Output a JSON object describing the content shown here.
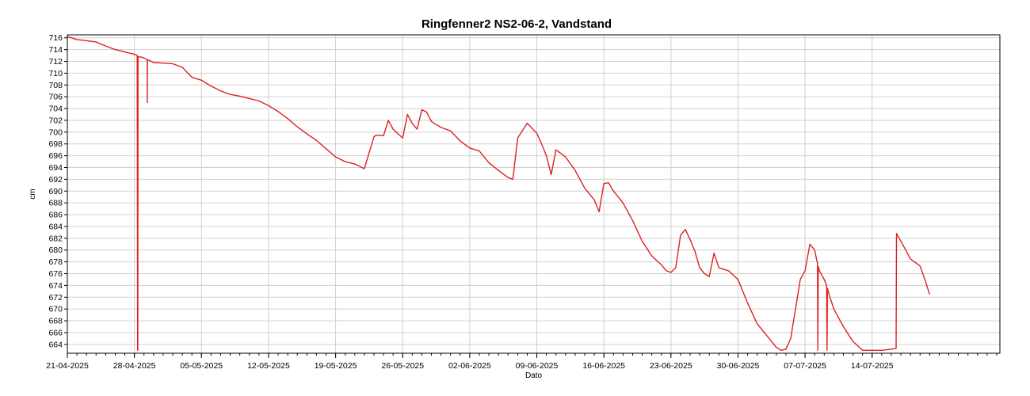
{
  "chart_data": {
    "type": "line",
    "title": "Ringfenner2 NS2-06-2, Vandstand",
    "xlabel": "Dato",
    "ylabel": "cm",
    "ylim": [
      662.5,
      716.5
    ],
    "xlim": [
      "2025-04-21",
      "2025-07-27T08:00"
    ],
    "grid": true,
    "legend": "none",
    "line_color": "#e02020",
    "y_ticks": [
      664,
      666,
      668,
      670,
      672,
      674,
      676,
      678,
      680,
      682,
      684,
      686,
      688,
      690,
      692,
      694,
      696,
      698,
      700,
      702,
      704,
      706,
      708,
      710,
      712,
      714,
      716
    ],
    "x_ticks": [
      "21-04-2025",
      "28-04-2025",
      "05-05-2025",
      "12-05-2025",
      "19-05-2025",
      "26-05-2025",
      "02-06-2025",
      "09-06-2025",
      "16-06-2025",
      "23-06-2025",
      "30-06-2025",
      "07-07-2025",
      "14-07-2025"
    ],
    "series": [
      {
        "x": [
          "2025-04-21",
          "2025-04-22",
          "2025-04-23",
          "2025-04-24",
          "2025-04-25",
          "2025-04-26",
          "2025-04-27",
          "2025-04-28",
          "2025-04-28T07:00",
          "2025-04-28T08:00",
          "2025-04-28T08:30",
          "2025-04-28T09:00",
          "2025-04-28T20:00",
          "2025-04-29T08:00",
          "2025-04-29T08:15",
          "2025-04-29T08:30",
          "2025-04-29T12:00",
          "2025-04-30",
          "2025-05-01",
          "2025-05-02",
          "2025-05-03",
          "2025-05-04",
          "2025-05-05",
          "2025-05-06",
          "2025-05-07",
          "2025-05-08",
          "2025-05-09",
          "2025-05-10",
          "2025-05-11",
          "2025-05-12",
          "2025-05-13",
          "2025-05-14",
          "2025-05-15",
          "2025-05-16",
          "2025-05-17",
          "2025-05-18",
          "2025-05-19",
          "2025-05-20",
          "2025-05-21",
          "2025-05-22",
          "2025-05-23",
          "2025-05-23T06:00",
          "2025-05-24",
          "2025-05-24T12:00",
          "2025-05-25",
          "2025-05-26",
          "2025-05-26T12:00",
          "2025-05-27",
          "2025-05-27T12:00",
          "2025-05-28",
          "2025-05-28T12:00",
          "2025-05-29",
          "2025-05-30",
          "2025-05-31",
          "2025-06-01",
          "2025-06-02",
          "2025-06-03",
          "2025-06-04",
          "2025-06-05",
          "2025-06-06",
          "2025-06-06T12:00",
          "2025-06-07",
          "2025-06-08",
          "2025-06-09",
          "2025-06-09T12:00",
          "2025-06-10",
          "2025-06-10T12:00",
          "2025-06-11",
          "2025-06-12",
          "2025-06-13",
          "2025-06-14",
          "2025-06-15",
          "2025-06-15T12:00",
          "2025-06-16",
          "2025-06-16T12:00",
          "2025-06-17",
          "2025-06-18",
          "2025-06-19",
          "2025-06-20",
          "2025-06-21",
          "2025-06-22",
          "2025-06-22T12:00",
          "2025-06-23",
          "2025-06-23T12:00",
          "2025-06-24",
          "2025-06-24T12:00",
          "2025-06-25",
          "2025-06-25T12:00",
          "2025-06-26",
          "2025-06-26T12:00",
          "2025-06-27",
          "2025-06-27T12:00",
          "2025-06-28",
          "2025-06-29",
          "2025-06-30",
          "2025-07-01",
          "2025-07-02",
          "2025-07-03",
          "2025-07-04",
          "2025-07-04T12:00",
          "2025-07-05",
          "2025-07-05T12:00",
          "2025-07-06",
          "2025-07-06T12:00",
          "2025-07-07",
          "2025-07-07T12:00",
          "2025-07-08",
          "2025-07-08T06:00",
          "2025-07-08T07:00",
          "2025-07-08T08:00",
          "2025-07-08T09:00",
          "2025-07-08T12:00",
          "2025-07-09",
          "2025-07-09T06:00",
          "2025-07-09T07:00",
          "2025-07-09T08:00",
          "2025-07-09T12:00",
          "2025-07-10",
          "2025-07-11",
          "2025-07-12",
          "2025-07-13",
          "2025-07-13T12:00",
          "2025-07-14",
          "2025-07-15",
          "2025-07-16",
          "2025-07-16T12:00",
          "2025-07-16T13:00",
          "2025-07-17",
          "2025-07-18",
          "2025-07-19",
          "2025-07-19T12:00",
          "2025-07-20"
        ],
        "values": [
          716.2,
          715.7,
          715.5,
          715.3,
          714.6,
          714.0,
          713.6,
          713.2,
          713.0,
          663.0,
          663.0,
          712.8,
          712.7,
          712.3,
          705.0,
          712.3,
          712.2,
          711.8,
          711.7,
          711.6,
          711.0,
          709.3,
          708.8,
          707.8,
          707.0,
          706.4,
          706.1,
          705.7,
          705.3,
          704.5,
          703.5,
          702.3,
          700.9,
          699.7,
          698.6,
          697.2,
          695.8,
          695.0,
          694.6,
          693.8,
          699.2,
          699.5,
          699.4,
          702.0,
          700.5,
          699.0,
          703.0,
          701.5,
          700.5,
          703.8,
          703.4,
          701.8,
          700.8,
          700.2,
          698.5,
          697.3,
          696.8,
          694.8,
          693.5,
          692.3,
          692.0,
          699.0,
          701.5,
          699.8,
          698.0,
          696.0,
          692.8,
          697.0,
          695.8,
          693.5,
          690.5,
          688.5,
          686.5,
          691.3,
          691.4,
          690.0,
          688.0,
          685.0,
          681.5,
          679.0,
          677.5,
          676.5,
          676.2,
          677.0,
          682.5,
          683.5,
          681.8,
          679.8,
          677.0,
          676.0,
          675.5,
          679.5,
          677.0,
          676.5,
          675.0,
          671.0,
          667.5,
          665.5,
          663.5,
          663.0,
          663.2,
          665.0,
          670.0,
          675.0,
          676.5,
          681.0,
          680.0,
          678.0,
          677.9,
          663.0,
          677.2,
          676.5,
          675.0,
          674.0,
          663.0,
          673.5,
          672.5,
          670.0,
          667.0,
          664.5,
          663.0,
          663.0,
          663.0,
          663.0,
          663.2,
          663.3,
          682.8,
          681.5,
          678.5,
          677.3,
          675.0,
          672.5
        ]
      }
    ]
  }
}
